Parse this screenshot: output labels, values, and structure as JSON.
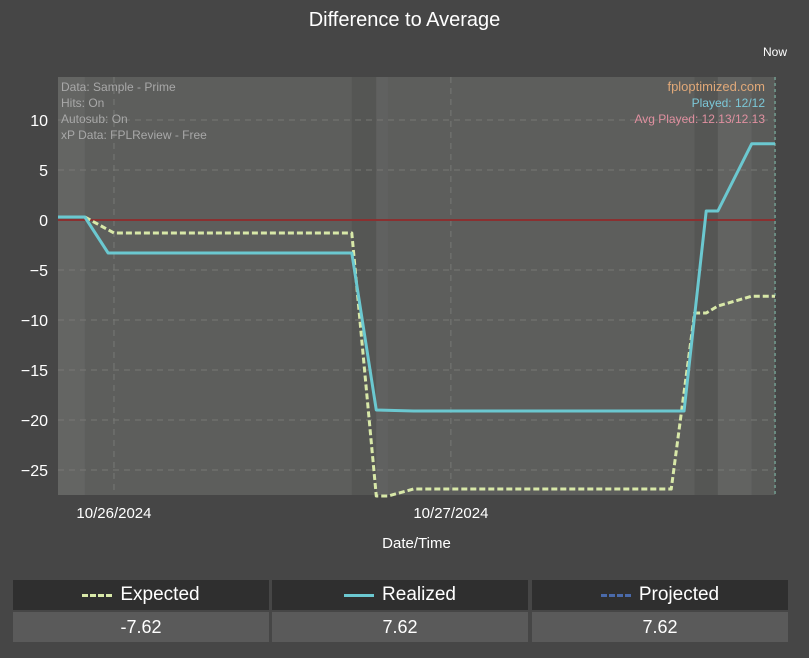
{
  "chart_data": {
    "type": "line",
    "title": "Difference to Average",
    "xlabel": "Date/Time",
    "ylabel": "",
    "ylim": [
      -27.5,
      14.3
    ],
    "yticks": [
      10,
      5,
      0,
      -5,
      -10,
      -15,
      -20,
      -25
    ],
    "xtick_labels": [
      "10/26/2024",
      "10/27/2024"
    ],
    "now_label": "Now",
    "grid": true,
    "info_left": [
      "Data: Sample - Prime",
      "Hits: On",
      "Autosub: On",
      "xP Data: FPLReview - Free"
    ],
    "info_right": [
      "fploptimized.com",
      "Played: 12/12",
      "Avg Played: 12.13/12.13"
    ],
    "series": [
      {
        "name": "Expected",
        "color": "#d8e8a8",
        "dashed": true,
        "x": [
          0,
          2.3,
          4.8,
          25.2,
          27.3,
          28.3,
          30.5,
          35.5,
          43.2,
          52.6,
          54.6,
          55.6,
          56.6,
          59.5,
          61.5
        ],
        "y": [
          0.3,
          0.3,
          -1.3,
          -1.3,
          -27.6,
          -27.6,
          -26.9,
          -26.9,
          -26.9,
          -26.9,
          -9.3,
          -9.3,
          -8.6,
          -7.62,
          -7.62
        ]
      },
      {
        "name": "Realized",
        "color": "#6bc8d0",
        "dashed": false,
        "x": [
          0,
          2.3,
          4.3,
          25.2,
          27.3,
          30.5,
          35.5,
          43.2,
          53.7,
          55.6,
          56.6,
          59.5,
          61.5
        ],
        "y": [
          0.3,
          0.3,
          -3.3,
          -3.3,
          -19.0,
          -19.1,
          -19.1,
          -19.1,
          -19.1,
          0.9,
          0.9,
          7.62,
          7.62
        ]
      },
      {
        "name": "Projected",
        "color": "#4a6aaa",
        "dashed": true,
        "x": [],
        "y": []
      }
    ],
    "zero_line_color": "#8a3030",
    "x_range": [
      0,
      61.5
    ],
    "x_ticks": [
      4.8,
      33.7
    ]
  },
  "legend": [
    {
      "label": "Expected",
      "value": "-7.62",
      "color": "#d8e8a8",
      "dashed": true
    },
    {
      "label": "Realized",
      "value": "7.62",
      "color": "#6bc8d0",
      "dashed": false
    },
    {
      "label": "Projected",
      "value": "7.62",
      "color": "#4a6aaa",
      "dashed": true
    }
  ]
}
